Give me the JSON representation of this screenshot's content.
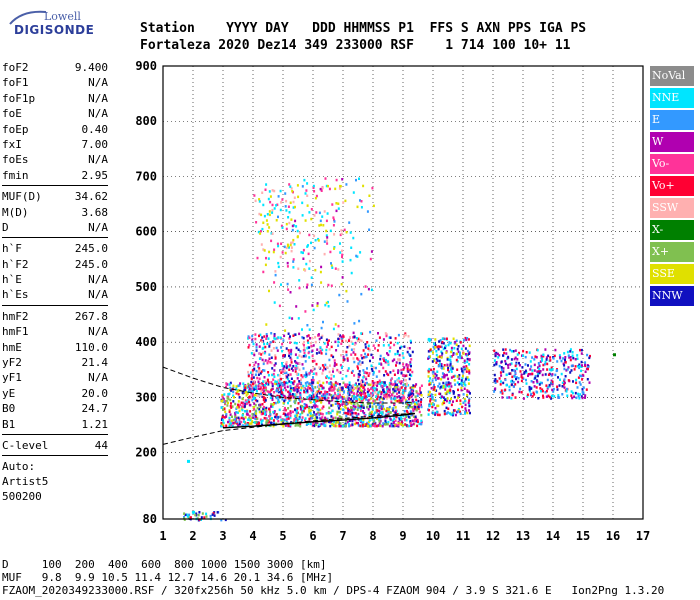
{
  "logo": {
    "line1": "Lowell",
    "line2": "DIGISONDE"
  },
  "header": {
    "row1": "Station    YYYY DAY   DDD HHMMSS P1  FFS S AXN PPS IGA PS",
    "row2": "Fortaleza 2020 Dez14 349 233000 RSF    1 714 100 10+ 11"
  },
  "params": {
    "group1": [
      {
        "label": "foF2",
        "value": "9.400"
      },
      {
        "label": "foF1",
        "value": "N/A"
      },
      {
        "label": "foF1p",
        "value": "N/A"
      },
      {
        "label": "foE",
        "value": "N/A"
      },
      {
        "label": "foEp",
        "value": "0.40"
      },
      {
        "label": "fxI",
        "value": "7.00"
      },
      {
        "label": "foEs",
        "value": "N/A"
      },
      {
        "label": "fmin",
        "value": "2.95"
      }
    ],
    "group2": [
      {
        "label": "MUF(D)",
        "value": "34.62"
      },
      {
        "label": "M(D)",
        "value": "3.68"
      },
      {
        "label": "D",
        "value": "N/A"
      }
    ],
    "group3": [
      {
        "label": "h`F",
        "value": "245.0"
      },
      {
        "label": "h`F2",
        "value": "245.0"
      },
      {
        "label": "h`E",
        "value": "N/A"
      },
      {
        "label": "h`Es",
        "value": "N/A"
      }
    ],
    "group4": [
      {
        "label": "hmF2",
        "value": "267.8"
      },
      {
        "label": "hmF1",
        "value": "N/A"
      },
      {
        "label": "hmE",
        "value": "110.0"
      },
      {
        "label": "yF2",
        "value": "21.4"
      },
      {
        "label": "yF1",
        "value": "N/A"
      },
      {
        "label": "yE",
        "value": "20.0"
      },
      {
        "label": "B0",
        "value": "24.7"
      },
      {
        "label": "B1",
        "value": "1.21"
      }
    ],
    "group5": [
      {
        "label": "C-level",
        "value": "44"
      }
    ],
    "auto": [
      "Auto:",
      "Artist5",
      "500200"
    ]
  },
  "legend": [
    {
      "label": "NoVal",
      "color": "#8c8c8c"
    },
    {
      "label": "NNE",
      "color": "#00e5ff"
    },
    {
      "label": "E",
      "color": "#3399ff"
    },
    {
      "label": "W",
      "color": "#b000b0"
    },
    {
      "label": "Vo-",
      "color": "#ff3399"
    },
    {
      "label": "Vo+",
      "color": "#ff0033"
    },
    {
      "label": "SSW",
      "color": "#ffb0b0"
    },
    {
      "label": "X-",
      "color": "#008000"
    },
    {
      "label": "X+",
      "color": "#80c050"
    },
    {
      "label": "SSE",
      "color": "#e0e000"
    },
    {
      "label": "NNW",
      "color": "#1010c0"
    }
  ],
  "chart_data": {
    "type": "scatter",
    "xlim": [
      1,
      17
    ],
    "ylim": [
      80,
      900
    ],
    "xticks": [
      1,
      2,
      3,
      4,
      5,
      6,
      7,
      8,
      9,
      10,
      11,
      12,
      13,
      14,
      15,
      16,
      17
    ],
    "yticks": [
      80,
      200,
      300,
      400,
      500,
      600,
      700,
      800,
      900
    ],
    "grid": true,
    "legend_position": "right",
    "traces": [
      {
        "name": "upper-dashed",
        "style": "dashed",
        "points": [
          [
            1,
            355
          ],
          [
            2,
            335
          ],
          [
            3,
            318
          ],
          [
            4,
            308
          ],
          [
            5,
            300
          ],
          [
            6,
            296
          ],
          [
            7,
            292
          ],
          [
            8,
            290
          ],
          [
            9,
            290
          ],
          [
            9.4,
            292
          ]
        ]
      },
      {
        "name": "lower-dashed",
        "style": "dashed",
        "points": [
          [
            1,
            215
          ],
          [
            2,
            228
          ],
          [
            3,
            240
          ],
          [
            4,
            246
          ],
          [
            5,
            252
          ],
          [
            6,
            258
          ],
          [
            7,
            262
          ],
          [
            8,
            266
          ],
          [
            9,
            270
          ],
          [
            9.4,
            272
          ]
        ]
      },
      {
        "name": "profile",
        "style": "solid",
        "points": [
          [
            3,
            245
          ],
          [
            4,
            248
          ],
          [
            5,
            252
          ],
          [
            6,
            256
          ],
          [
            7,
            259
          ],
          [
            8,
            263
          ],
          [
            9,
            268
          ],
          [
            9.4,
            271
          ]
        ]
      }
    ],
    "clusters": [
      {
        "name": "main-F-trace",
        "x": [
          2.9,
          9.6
        ],
        "y": [
          250,
          330
        ],
        "count": 1400,
        "colors": [
          "#3399ff",
          "#00e5ff",
          "#e0e000",
          "#ff0033",
          "#b000b0",
          "#1010c0",
          "#ff3399",
          "#80c050"
        ]
      },
      {
        "name": "spread-F",
        "x": [
          3.8,
          9.3
        ],
        "y": [
          300,
          420
        ],
        "count": 900,
        "colors": [
          "#b000b0",
          "#ff3399",
          "#ff0033",
          "#3399ff",
          "#00e5ff",
          "#ffb0b0",
          "#1010c0"
        ]
      },
      {
        "name": "high-echo",
        "x": [
          4.0,
          7.0
        ],
        "y": [
          530,
          690
        ],
        "count": 140,
        "colors": [
          "#e0e000",
          "#ffb0b0",
          "#ff3399",
          "#00e5ff"
        ]
      },
      {
        "name": "sparse-upper",
        "x": [
          4.3,
          8.0
        ],
        "y": [
          420,
          700
        ],
        "count": 160,
        "colors": [
          "#b000b0",
          "#3399ff",
          "#ff3399",
          "#00e5ff",
          "#e0e000"
        ]
      },
      {
        "name": "region-10",
        "x": [
          9.8,
          11.2
        ],
        "y": [
          270,
          410
        ],
        "count": 380,
        "colors": [
          "#e0e000",
          "#00e5ff",
          "#b000b0",
          "#ff0033",
          "#3399ff",
          "#1010c0"
        ]
      },
      {
        "name": "region-12-15",
        "x": [
          12.0,
          15.2
        ],
        "y": [
          300,
          390
        ],
        "count": 380,
        "colors": [
          "#1010c0",
          "#3399ff",
          "#00e5ff",
          "#b000b0",
          "#ff0033"
        ]
      },
      {
        "name": "low-traces",
        "x": [
          1.6,
          3.2
        ],
        "y": [
          80,
          95
        ],
        "count": 40,
        "colors": [
          "#ff0033",
          "#1010c0",
          "#3399ff",
          "#00e5ff",
          "#80c050"
        ]
      }
    ]
  },
  "footer": {
    "row1": "D     100  200  400  600  800 1000 1500 3000 [km]",
    "row2": "MUF   9.8  9.9 10.5 11.4 12.7 14.6 20.1 34.6 [MHz]",
    "row3": "FZAOM_2020349233000.RSF / 320fx256h 50 kHz 5.0 km / DPS-4 FZAOM 904 / 3.9 S 321.6 E   Ion2Png 1.3.20"
  }
}
